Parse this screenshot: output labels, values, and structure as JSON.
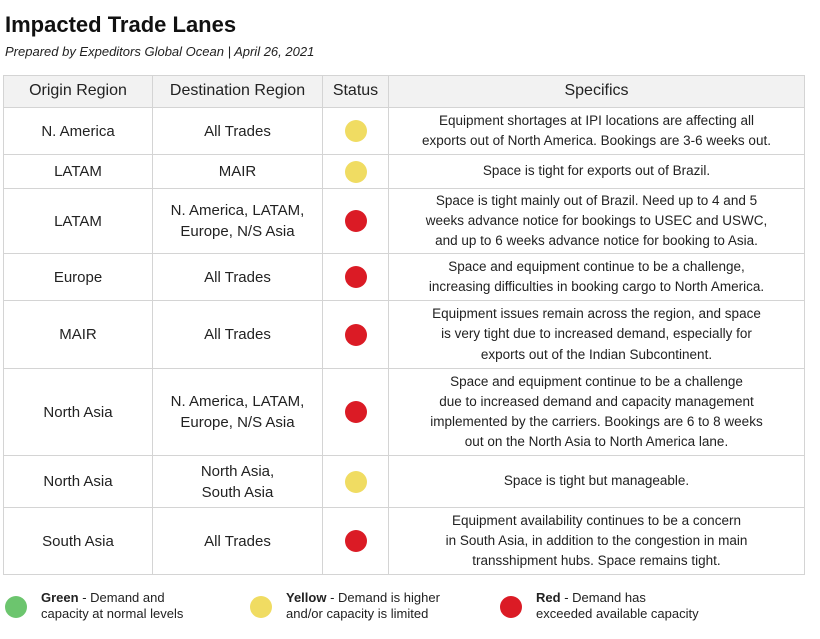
{
  "header": {
    "title": "Impacted Trade Lanes",
    "subtitle": "Prepared by Expeditors Global Ocean | April 26, 2021"
  },
  "colors": {
    "green": "#6cc56e",
    "yellow": "#f0dc62",
    "red": "#db1b25"
  },
  "table": {
    "columns": [
      "Origin Region",
      "Destination Region",
      "Status",
      "Specifics"
    ],
    "rows": [
      {
        "origin": "N. America",
        "destination": [
          "All Trades"
        ],
        "status": "yellow",
        "specifics": [
          "Equipment shortages at IPI locations are affecting all",
          "exports out of North America. Bookings are 3-6 weeks out."
        ]
      },
      {
        "origin": "LATAM",
        "destination": [
          "MAIR"
        ],
        "status": "yellow",
        "specifics": [
          "Space is tight for exports out of Brazil."
        ]
      },
      {
        "origin": "LATAM",
        "destination": [
          "N. America, LATAM,",
          "Europe, N/S Asia"
        ],
        "status": "red",
        "specifics": [
          "Space is tight mainly out of Brazil. Need up to 4 and 5",
          "weeks advance notice for bookings to USEC and USWC,",
          "and up to 6 weeks advance notice for booking to Asia."
        ]
      },
      {
        "origin": "Europe",
        "destination": [
          "All Trades"
        ],
        "status": "red",
        "specifics": [
          "Space and equipment continue to be a challenge,",
          "increasing difficulties in booking cargo to North America."
        ]
      },
      {
        "origin": "MAIR",
        "destination": [
          "All Trades"
        ],
        "status": "red",
        "specifics": [
          "Equipment issues remain across the region, and space",
          "is very tight due to increased demand, especially for",
          "exports out of the Indian Subcontinent."
        ]
      },
      {
        "origin": "North Asia",
        "destination": [
          "N. America, LATAM,",
          "Europe, N/S Asia"
        ],
        "status": "red",
        "specifics": [
          "Space and equipment continue to be a challenge",
          "due to increased demand and capacity management",
          "implemented by the carriers. Bookings are 6 to 8 weeks",
          "out on the North Asia to North America lane."
        ]
      },
      {
        "origin": "North Asia",
        "destination": [
          "North Asia,",
          "South Asia"
        ],
        "status": "yellow",
        "specifics": [
          "Space is tight but manageable."
        ]
      },
      {
        "origin": "South Asia",
        "destination": [
          "All Trades"
        ],
        "status": "red",
        "specifics": [
          "Equipment availability continues to be a concern",
          "in South Asia, in addition to the congestion in main",
          "transshipment hubs. Space remains tight."
        ]
      }
    ]
  },
  "legend": [
    {
      "color": "green",
      "label": "Green",
      "description": [
        "- Demand and",
        "capacity at normal levels"
      ]
    },
    {
      "color": "yellow",
      "label": "Yellow",
      "description": [
        "- Demand is higher",
        "and/or capacity is limited"
      ]
    },
    {
      "color": "red",
      "label": "Red",
      "description": [
        "- Demand has",
        "exceeded available capacity"
      ]
    }
  ]
}
